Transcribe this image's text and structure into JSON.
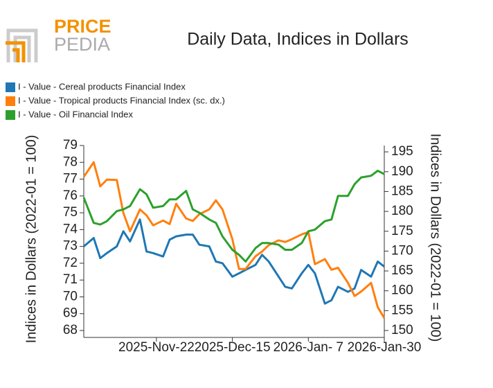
{
  "logo": {
    "top": "PRICE",
    "bottom": "PEDIA"
  },
  "chart_data": {
    "type": "line",
    "title": "Daily Data, Indices in Dollars",
    "ylabel": "Indices in Dollars (2022-01 = 100)",
    "y2label": "Indices in Dollars (2022-01 = 100)",
    "x": [
      "2025-10-31",
      "2025-11-03",
      "2025-11-05",
      "2025-11-07",
      "2025-11-10",
      "2025-11-12",
      "2025-11-14",
      "2025-11-17",
      "2025-11-19",
      "2025-11-21",
      "2025-11-24",
      "2025-11-26",
      "2025-11-28",
      "2025-12-01",
      "2025-12-03",
      "2025-12-05",
      "2025-12-08",
      "2025-12-10",
      "2025-12-12",
      "2025-12-15",
      "2025-12-17",
      "2025-12-19",
      "2025-12-22",
      "2025-12-24",
      "2025-12-26",
      "2025-12-29",
      "2025-12-31",
      "2026-01-02",
      "2026-01-05",
      "2026-01-07",
      "2026-01-09",
      "2026-01-12",
      "2026-01-14",
      "2026-01-16",
      "2026-01-19",
      "2026-01-21",
      "2026-01-23",
      "2026-01-26",
      "2026-01-28",
      "2026-01-30"
    ],
    "xlim": [
      "2025-10-31",
      "2026-01-30"
    ],
    "xticks": [
      {
        "value": "2025-11-22",
        "label": "2025-Nov-22"
      },
      {
        "value": "2025-12-15",
        "label": "2025-Dec-15"
      },
      {
        "value": "2026-01-07",
        "label": "2026-Jan- 7"
      },
      {
        "value": "2026-01-30",
        "label": "2026-Jan-30"
      }
    ],
    "ylim": [
      68,
      79
    ],
    "yticks": [
      68,
      69,
      70,
      71,
      72,
      73,
      74,
      75,
      76,
      77,
      78,
      79
    ],
    "y2lim": [
      150,
      196.6
    ],
    "y2ticks": [
      150,
      155,
      160,
      165,
      170,
      175,
      180,
      185,
      190,
      195
    ],
    "series": [
      {
        "name": "I - Value - Cereal products Financial Index",
        "color": "#1f77b4",
        "values": [
          73.0,
          73.5,
          72.3,
          72.6,
          73.0,
          73.9,
          73.3,
          74.6,
          72.7,
          72.6,
          72.4,
          73.4,
          73.6,
          73.7,
          73.7,
          73.1,
          73.0,
          72.1,
          72.0,
          71.2,
          71.4,
          71.6,
          71.9,
          72.5,
          72.1,
          71.2,
          70.6,
          70.5,
          71.4,
          71.9,
          71.4,
          69.6,
          69.8,
          70.6,
          70.3,
          70.5,
          71.6,
          71.2,
          72.1,
          71.8
        ]
      },
      {
        "name": "I - Value - Tropical products Financial Index (sc. dx.)",
        "color": "#ff7f0e",
        "axis": "y2",
        "values": [
          188.7,
          192.4,
          186.3,
          188.0,
          187.9,
          179.6,
          175.0,
          180.5,
          179.0,
          176.5,
          177.7,
          176.8,
          181.9,
          178.2,
          177.6,
          179.3,
          180.5,
          182.8,
          180.5,
          173.0,
          165.5,
          165.5,
          168.7,
          169.9,
          171.5,
          172.7,
          172.3,
          173.0,
          174.2,
          174.8,
          166.7,
          168.0,
          165.3,
          165.8,
          162.0,
          158.7,
          159.8,
          162.0,
          155.9,
          153.1
        ]
      },
      {
        "name": "I - Value - Oil Financial Index",
        "color": "#2ca02c",
        "values": [
          75.9,
          74.4,
          74.3,
          74.5,
          75.1,
          75.2,
          75.4,
          76.4,
          76.1,
          75.3,
          75.4,
          75.8,
          75.8,
          76.3,
          75.2,
          75.0,
          74.6,
          74.4,
          73.6,
          72.8,
          72.5,
          72.1,
          72.9,
          73.2,
          73.2,
          73.1,
          72.8,
          72.8,
          73.2,
          73.9,
          74.0,
          74.5,
          74.6,
          76.0,
          76.0,
          76.7,
          77.1,
          77.2,
          77.5,
          77.3
        ]
      }
    ]
  }
}
